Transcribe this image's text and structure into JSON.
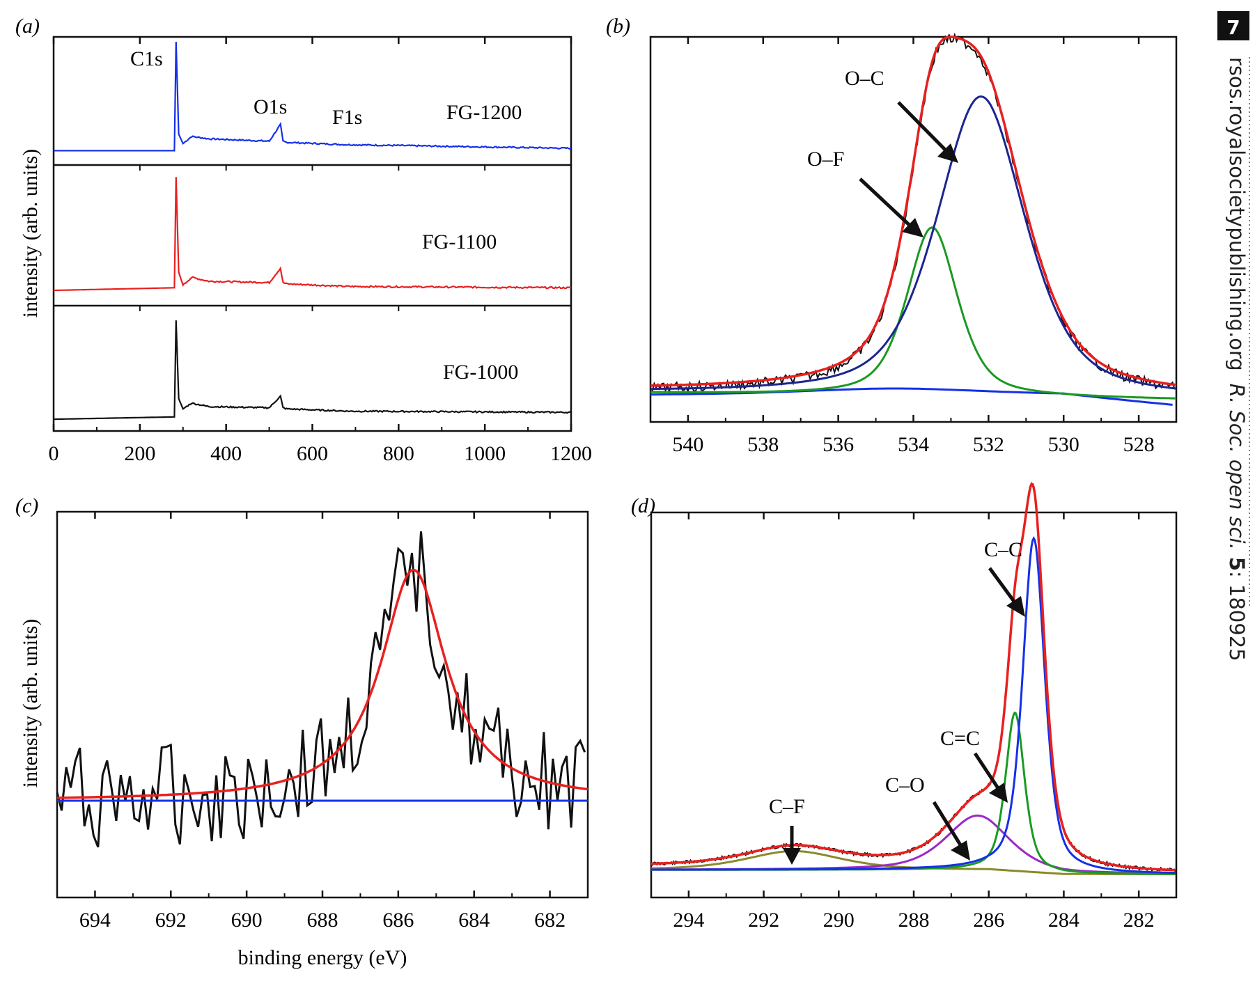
{
  "page_number": "7",
  "side_text": {
    "journal": "rsos.royalsocietypublishing.org",
    "citation_italic": "R. Soc. open sci.",
    "volume": "5",
    "article": ": 180925"
  },
  "colors": {
    "blue": "#1530e8",
    "red": "#e8201f",
    "black": "#111111",
    "green": "#1a9a22",
    "navy": "#1c2590",
    "purple": "#9b28c6",
    "olive": "#8a8a2a"
  },
  "chart_data": [
    {
      "panel": "(a)",
      "type": "line",
      "xlabel": "",
      "ylabel": "intensity (arb. units)",
      "xlim": [
        0,
        1200
      ],
      "xticks": [
        "0",
        "200",
        "400",
        "600",
        "800",
        "1000",
        "1200"
      ],
      "peak_labels": [
        "C1s",
        "O1s",
        "F1s"
      ],
      "series": [
        {
          "name": "FG-1200",
          "color": "blue",
          "x": [
            0,
            280,
            284,
            290,
            300,
            320,
            360,
            500,
            526,
            532,
            540,
            685,
            690,
            1200
          ],
          "y": [
            0.08,
            0.08,
            1.0,
            0.22,
            0.14,
            0.2,
            0.18,
            0.16,
            0.3,
            0.16,
            0.15,
            0.13,
            0.13,
            0.1
          ]
        },
        {
          "name": "FG-1100",
          "color": "red",
          "x": [
            0,
            280,
            284,
            290,
            300,
            320,
            360,
            500,
            526,
            532,
            540,
            685,
            690,
            1200
          ],
          "y": [
            0.08,
            0.1,
            0.95,
            0.22,
            0.12,
            0.18,
            0.15,
            0.14,
            0.25,
            0.14,
            0.13,
            0.11,
            0.11,
            0.1
          ]
        },
        {
          "name": "FG-1000",
          "color": "black",
          "x": [
            0,
            280,
            284,
            290,
            300,
            320,
            360,
            500,
            526,
            532,
            540,
            685,
            690,
            1200
          ],
          "y": [
            0.06,
            0.08,
            0.92,
            0.24,
            0.15,
            0.2,
            0.17,
            0.16,
            0.26,
            0.16,
            0.15,
            0.13,
            0.13,
            0.12
          ]
        }
      ]
    },
    {
      "panel": "(b)",
      "type": "line",
      "xlabel": "",
      "ylabel": "",
      "xlim": [
        541,
        527
      ],
      "xticks": [
        "540",
        "538",
        "536",
        "534",
        "532",
        "530",
        "528"
      ],
      "annotations": [
        "O–C",
        "O–F"
      ],
      "series": [
        {
          "color": "navy",
          "component": "O–C",
          "center": 532.2,
          "height": 0.8,
          "width": 1.4,
          "baseline": 0.0
        },
        {
          "color": "green",
          "component": "O–F",
          "center": 533.5,
          "height": 0.45,
          "width": 0.8,
          "baseline": 0.0
        },
        {
          "color": "blue",
          "component": "background",
          "center": 534.5,
          "height": 0.02,
          "width": 3.0,
          "baseline": 0.0
        }
      ]
    },
    {
      "panel": "(c)",
      "type": "line",
      "xlabel": "binding energy (eV)",
      "ylabel": "intensity (arb. units)",
      "xlim": [
        695,
        681
      ],
      "xticks": [
        "694",
        "692",
        "690",
        "688",
        "686",
        "684",
        "682"
      ],
      "series": [
        {
          "color": "red",
          "component": "fit",
          "center": 685.6,
          "height": 0.65,
          "width": 1.0,
          "baseline": 0.0
        },
        {
          "color": "blue",
          "component": "baseline",
          "center": 685.6,
          "height": 0.0,
          "width": 1.0,
          "baseline": 0.0
        }
      ]
    },
    {
      "panel": "(d)",
      "type": "line",
      "xlabel": "binding energy (eV)",
      "ylabel": "",
      "xlim": [
        295,
        281
      ],
      "xticks": [
        "294",
        "292",
        "290",
        "288",
        "286",
        "284",
        "282"
      ],
      "annotations": [
        "C–C",
        "C=C",
        "C–O",
        "C–F"
      ],
      "series": [
        {
          "color": "blue",
          "component": "C–C",
          "center": 284.8,
          "height": 0.8,
          "width": 0.35,
          "baseline": 0.0
        },
        {
          "color": "green",
          "component": "C=C",
          "center": 285.3,
          "height": 0.38,
          "width": 0.3,
          "baseline": 0.0
        },
        {
          "color": "purple",
          "component": "C–O",
          "center": 286.3,
          "height": 0.13,
          "width": 1.0,
          "baseline": 0.0
        },
        {
          "color": "olive",
          "component": "C–F",
          "center": 291.2,
          "height": 0.045,
          "width": 1.5,
          "baseline": 0.0
        }
      ]
    }
  ]
}
